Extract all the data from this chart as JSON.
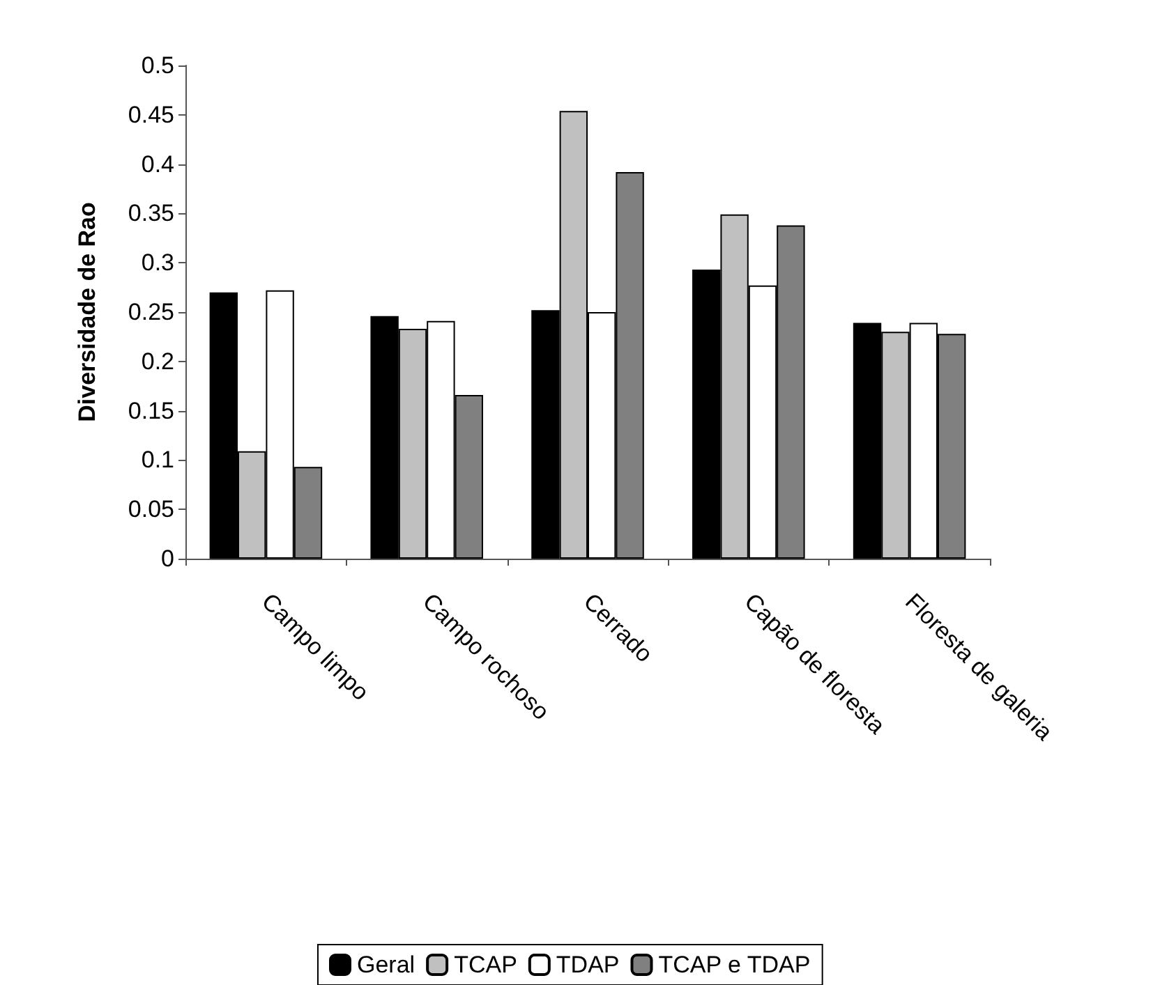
{
  "chart_data": {
    "type": "bar",
    "ylabel": "Diversidade de Rao",
    "categories": [
      "Campo limpo",
      "Campo rochoso",
      "Cerrado",
      "Capão de floresta",
      "Floresta de galeria"
    ],
    "series": [
      {
        "name": "Geral",
        "color": "#000000",
        "values": [
          0.27,
          0.246,
          0.252,
          0.293,
          0.239
        ]
      },
      {
        "name": "TCAP",
        "color": "#c0c0c0",
        "values": [
          0.109,
          0.233,
          0.454,
          0.349,
          0.23
        ]
      },
      {
        "name": "TDAP",
        "color": "#ffffff",
        "values": [
          0.272,
          0.241,
          0.25,
          0.277,
          0.239
        ]
      },
      {
        "name": "TCAP e TDAP",
        "color": "#808080",
        "values": [
          0.093,
          0.166,
          0.392,
          0.338,
          0.228
        ]
      }
    ],
    "ylim": [
      0,
      0.5
    ],
    "yticks": [
      0,
      0.05,
      0.1,
      0.15,
      0.2,
      0.25,
      0.3,
      0.35,
      0.4,
      0.45,
      0.5
    ],
    "grid": false,
    "legend": "bottom"
  }
}
